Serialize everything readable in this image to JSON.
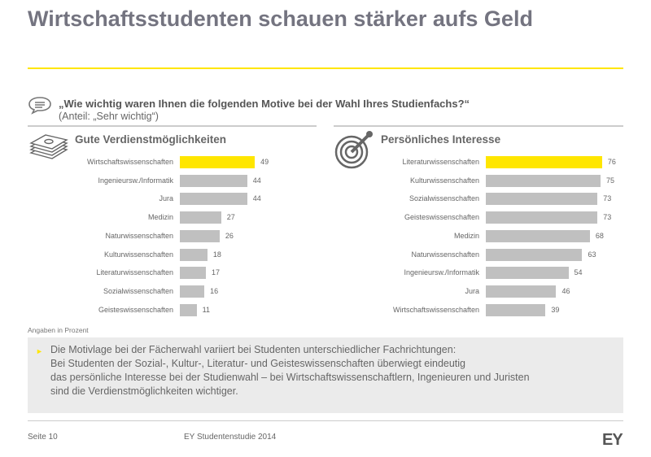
{
  "title": "Wirtschaftsstudenten schauen stärker aufs Geld",
  "question": "„Wie wichtig waren Ihnen die folgenden Motive bei der Wahl Ihres Studienfachs?“",
  "question_sub": "(Anteil: „Sehr wichtig“)",
  "note": "Angaben in Prozent",
  "summary": [
    "Die Motivlage bei der Fächerwahl variiert bei Studenten unterschiedlicher Fachrichtungen:",
    "Bei Studenten der Sozial-, Kultur-, Literatur- und Geisteswissenschaften überwiegt eindeutig",
    "das persönliche Interesse bei der Studienwahl – bei Wirtschaftswissenschaftlern, Ingenieuren und Juristen",
    "sind die Verdienstmöglichkeiten wichtiger."
  ],
  "footer": {
    "page": "Seite 10",
    "study": "EY Studentenstudie 2014",
    "logo": "EY"
  },
  "colors": {
    "highlight": "#ffe600",
    "bar": "#c0c0c0",
    "accent": "#ffe600"
  },
  "chart_data": [
    {
      "type": "bar",
      "orientation": "horizontal",
      "title": "Gute Verdienstmöglichkeiten",
      "icon": "money-stack-icon",
      "categories": [
        "Wirtschaftswissenschaften",
        "Ingenieursw./Informatik",
        "Jura",
        "Medizin",
        "Naturwissenschaften",
        "Kulturwissenschaften",
        "Literaturwissenschaften",
        "Sozialwissenschaften",
        "Geisteswissenschaften"
      ],
      "values": [
        49,
        44,
        44,
        27,
        26,
        18,
        17,
        16,
        11
      ],
      "highlight_index": 0,
      "xlim": [
        0,
        100
      ]
    },
    {
      "type": "bar",
      "orientation": "horizontal",
      "title": "Persönliches Interesse",
      "icon": "target-icon",
      "categories": [
        "Literaturwissenschaften",
        "Kulturwissenschaften",
        "Sozialwissenschaften",
        "Geisteswissenschaften",
        "Medizin",
        "Naturwissenschaften",
        "Ingenieursw./Informatik",
        "Jura",
        "Wirtschaftswissenschaften"
      ],
      "values": [
        76,
        75,
        73,
        73,
        68,
        63,
        54,
        46,
        39
      ],
      "highlight_index": 0,
      "xlim": [
        0,
        100
      ]
    }
  ]
}
